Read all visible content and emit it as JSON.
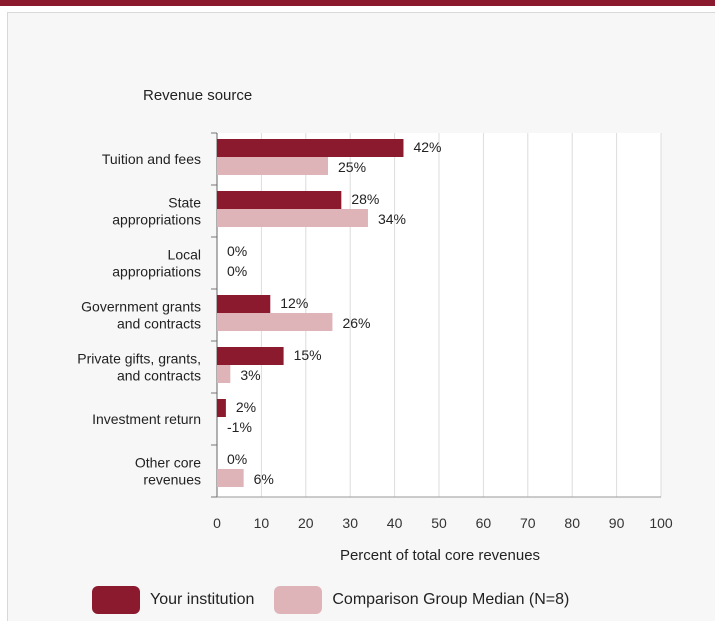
{
  "colors": {
    "accent": "#8b1a2f",
    "your_institution": "#8b1a2f",
    "comparison": "#deb4b9",
    "grid": "#dcdcdc",
    "background": "#f7f7f7"
  },
  "legend": {
    "your_institution_label": "Your institution",
    "comparison_label": "Comparison Group Median (N=8)"
  },
  "chart_data": {
    "type": "bar",
    "orientation": "horizontal",
    "title": "Revenue source",
    "xlabel": "Percent of total core revenues",
    "ylabel": "",
    "xlim": [
      0,
      100
    ],
    "xticks": [
      0,
      10,
      20,
      30,
      40,
      50,
      60,
      70,
      80,
      90,
      100
    ],
    "grid": true,
    "legend_position": "bottom",
    "categories": [
      [
        "Tuition and fees"
      ],
      [
        "State",
        "appropriations"
      ],
      [
        "Local",
        "appropriations"
      ],
      [
        "Government grants",
        "and contracts"
      ],
      [
        "Private gifts, grants,",
        "and contracts"
      ],
      [
        "Investment return"
      ],
      [
        "Other core",
        "revenues"
      ]
    ],
    "series": [
      {
        "name": "Your institution",
        "color": "#8b1a2f",
        "values": [
          42,
          28,
          0,
          12,
          15,
          2,
          0
        ],
        "labels": [
          "42%",
          "28%",
          "0%",
          "12%",
          "15%",
          "2%",
          "0%"
        ]
      },
      {
        "name": "Comparison Group Median (N=8)",
        "color": "#deb4b9",
        "values": [
          25,
          34,
          0,
          26,
          3,
          -1,
          6
        ],
        "labels": [
          "25%",
          "34%",
          "0%",
          "26%",
          "3%",
          "-1%",
          "6%"
        ]
      }
    ]
  }
}
